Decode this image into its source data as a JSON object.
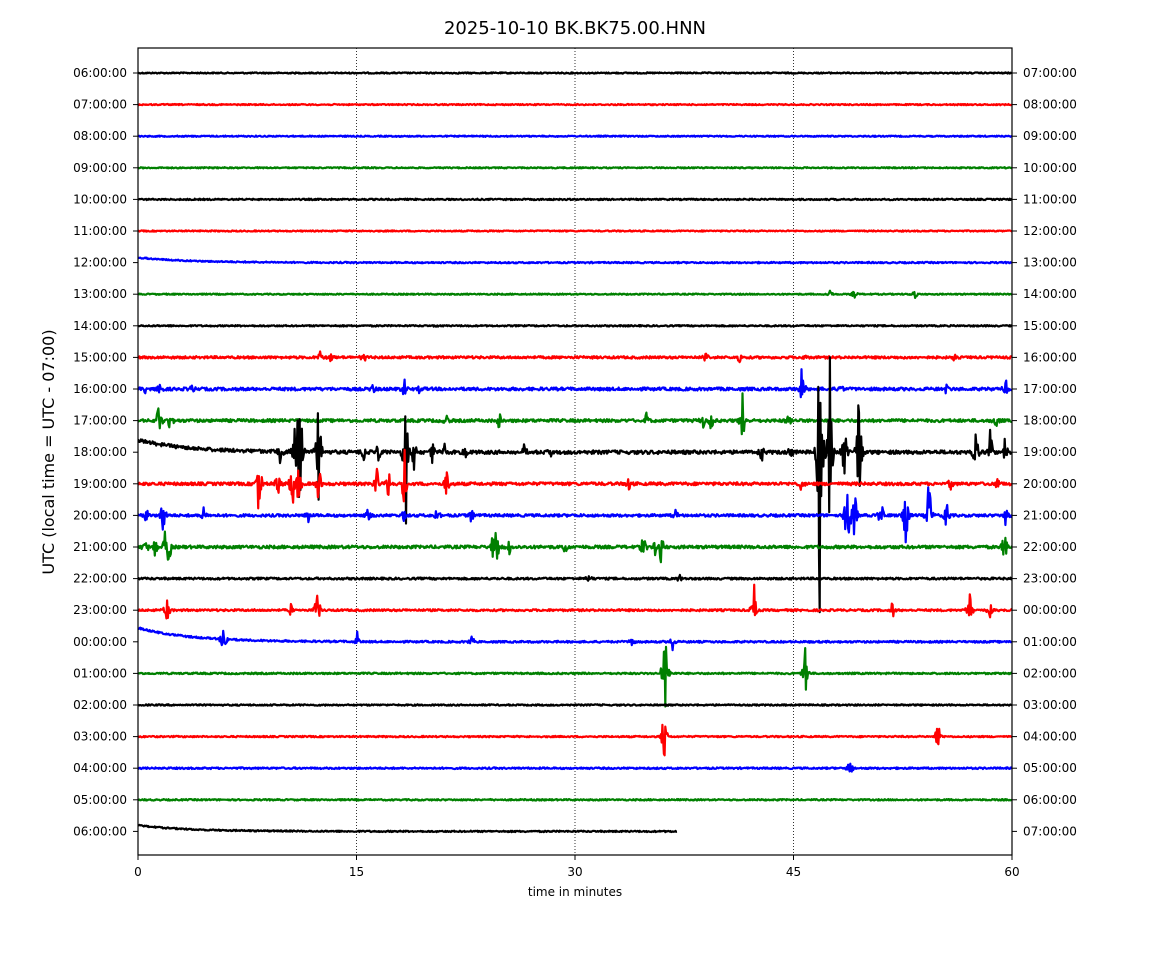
{
  "chart_data": {
    "type": "line",
    "title": "2025-10-10 BK.BK75.00.HNN",
    "xlabel": "time in minutes",
    "ylabel": "UTC (local time = UTC - 07:00)",
    "xlim": [
      0,
      60
    ],
    "x_ticks": [
      0,
      15,
      30,
      45,
      60
    ],
    "x_tick_labels": [
      "0",
      "15",
      "30",
      "45",
      "60"
    ],
    "grid": "vertical dotted lines at 15, 30, 45 minutes",
    "colors": [
      "#000000",
      "#ff0000",
      "#0000ff",
      "#008000"
    ],
    "left_tick_labels": [
      "06:00:00",
      "07:00:00",
      "08:00:00",
      "09:00:00",
      "10:00:00",
      "11:00:00",
      "12:00:00",
      "13:00:00",
      "14:00:00",
      "15:00:00",
      "16:00:00",
      "17:00:00",
      "18:00:00",
      "19:00:00",
      "20:00:00",
      "21:00:00",
      "22:00:00",
      "23:00:00",
      "00:00:00",
      "01:00:00",
      "02:00:00",
      "03:00:00",
      "04:00:00",
      "05:00:00",
      "06:00:00"
    ],
    "right_tick_labels": [
      "07:00:00",
      "08:00:00",
      "09:00:00",
      "10:00:00",
      "11:00:00",
      "12:00:00",
      "13:00:00",
      "14:00:00",
      "15:00:00",
      "16:00:00",
      "17:00:00",
      "18:00:00",
      "19:00:00",
      "20:00:00",
      "21:00:00",
      "22:00:00",
      "23:00:00",
      "00:00:00",
      "01:00:00",
      "02:00:00",
      "03:00:00",
      "04:00:00",
      "05:00:00",
      "06:00:00",
      "07:00:00"
    ],
    "traces": [
      {
        "noise": 0.6,
        "end_minute": 60,
        "offset_start": 0,
        "spikes": []
      },
      {
        "noise": 0.6,
        "end_minute": 60,
        "offset_start": 0,
        "spikes": []
      },
      {
        "noise": 0.6,
        "end_minute": 60,
        "offset_start": 0,
        "spikes": []
      },
      {
        "noise": 0.6,
        "end_minute": 60,
        "offset_start": 0,
        "spikes": []
      },
      {
        "noise": 0.7,
        "end_minute": 60,
        "offset_start": 0,
        "spikes": []
      },
      {
        "noise": 0.6,
        "end_minute": 60,
        "offset_start": 0,
        "spikes": []
      },
      {
        "noise": 0.7,
        "end_minute": 60,
        "offset_start": -5,
        "spikes": []
      },
      {
        "noise": 0.6,
        "end_minute": 60,
        "offset_start": 0,
        "spikes": [
          [
            47.5,
            6
          ],
          [
            49.2,
            5
          ],
          [
            53.3,
            6
          ]
        ]
      },
      {
        "noise": 0.7,
        "end_minute": 60,
        "offset_start": 0,
        "spikes": [
          [
            20.5,
            4
          ]
        ]
      },
      {
        "noise": 1.2,
        "end_minute": 60,
        "offset_start": 0,
        "spikes": [
          [
            12.5,
            6
          ],
          [
            13.2,
            6
          ],
          [
            15.5,
            6
          ],
          [
            39.0,
            6
          ],
          [
            41.3,
            6
          ],
          [
            45.7,
            7
          ],
          [
            56,
            5
          ]
        ]
      },
      {
        "noise": 1.5,
        "end_minute": 60,
        "offset_start": 0,
        "spikes": [
          [
            0.5,
            5
          ],
          [
            1.5,
            6
          ],
          [
            3.7,
            5
          ],
          [
            16.1,
            7
          ],
          [
            18.3,
            10
          ],
          [
            19.3,
            5
          ],
          [
            45.6,
            30
          ],
          [
            48.3,
            10
          ],
          [
            55.5,
            5
          ],
          [
            59.6,
            10
          ]
        ]
      },
      {
        "noise": 1.5,
        "end_minute": 60,
        "offset_start": 0,
        "spikes": [
          [
            1.4,
            25
          ],
          [
            2.2,
            18
          ],
          [
            21.2,
            9
          ],
          [
            24.8,
            12
          ],
          [
            34.9,
            9
          ],
          [
            38.8,
            10
          ],
          [
            39.3,
            15
          ],
          [
            41.5,
            30
          ],
          [
            44.7,
            9
          ],
          [
            58.9,
            10
          ]
        ]
      },
      {
        "noise": 1.8,
        "end_minute": 60,
        "offset_start": -12,
        "spikes": [
          [
            9.8,
            20
          ],
          [
            10.8,
            30
          ],
          [
            11.1,
            128
          ],
          [
            12.4,
            60
          ],
          [
            15.5,
            12
          ],
          [
            16.5,
            15
          ],
          [
            18.4,
            75
          ],
          [
            18.9,
            30
          ],
          [
            20.2,
            15
          ],
          [
            21.0,
            12
          ],
          [
            22.5,
            8
          ],
          [
            26.5,
            8
          ],
          [
            28.3,
            8
          ],
          [
            42.8,
            12
          ],
          [
            44.8,
            8
          ],
          [
            46.8,
            168
          ],
          [
            47.5,
            100
          ],
          [
            48.5,
            40
          ],
          [
            49.5,
            90
          ],
          [
            57.5,
            30
          ],
          [
            58.5,
            25
          ],
          [
            59.5,
            15
          ]
        ]
      },
      {
        "noise": 1.5,
        "end_minute": 60,
        "offset_start": 0,
        "spikes": [
          [
            8.3,
            40
          ],
          [
            9.6,
            18
          ],
          [
            10.6,
            35
          ],
          [
            11.0,
            25
          ],
          [
            12.4,
            25
          ],
          [
            16.4,
            20
          ],
          [
            17.2,
            20
          ],
          [
            18.3,
            35
          ],
          [
            21.2,
            20
          ],
          [
            33.7,
            8
          ],
          [
            45.5,
            8
          ],
          [
            55.8,
            8
          ],
          [
            59.0,
            8
          ]
        ]
      },
      {
        "noise": 1.3,
        "end_minute": 60,
        "offset_start": 0,
        "spikes": [
          [
            0.6,
            10
          ],
          [
            1.7,
            25
          ],
          [
            4.5,
            8
          ],
          [
            11.7,
            10
          ],
          [
            15.8,
            8
          ],
          [
            18.2,
            8
          ],
          [
            20.5,
            10
          ],
          [
            22.9,
            10
          ],
          [
            36.9,
            8
          ],
          [
            48.7,
            58
          ],
          [
            49.2,
            30
          ],
          [
            51.0,
            20
          ],
          [
            52.7,
            55
          ],
          [
            54.3,
            45
          ],
          [
            55.5,
            20
          ],
          [
            59.6,
            15
          ]
        ]
      },
      {
        "noise": 1.5,
        "end_minute": 60,
        "offset_start": 0,
        "spikes": [
          [
            0.5,
            20
          ],
          [
            1.2,
            15
          ],
          [
            2.0,
            66
          ],
          [
            24.5,
            55
          ],
          [
            25.5,
            12
          ],
          [
            29.3,
            12
          ],
          [
            34.7,
            15
          ],
          [
            35.5,
            10
          ],
          [
            35.9,
            20
          ],
          [
            59.5,
            25
          ]
        ]
      },
      {
        "noise": 1.0,
        "end_minute": 60,
        "offset_start": 0,
        "spikes": [
          [
            31.0,
            6
          ],
          [
            37.2,
            4
          ]
        ]
      },
      {
        "noise": 1.0,
        "end_minute": 60,
        "offset_start": 0,
        "spikes": [
          [
            2.0,
            15
          ],
          [
            10.5,
            8
          ],
          [
            12.3,
            25
          ],
          [
            42.3,
            25
          ],
          [
            51.8,
            12
          ],
          [
            57.1,
            25
          ],
          [
            58.5,
            8
          ]
        ]
      },
      {
        "noise": 0.9,
        "end_minute": 60,
        "offset_start": -14,
        "spikes": [
          [
            5.9,
            30
          ],
          [
            15.1,
            15
          ],
          [
            22.9,
            8
          ],
          [
            33.9,
            8
          ],
          [
            36.7,
            8
          ]
        ]
      },
      {
        "noise": 0.8,
        "end_minute": 60,
        "offset_start": 0,
        "spikes": [
          [
            36.2,
            80
          ],
          [
            45.8,
            28
          ]
        ]
      },
      {
        "noise": 0.7,
        "end_minute": 60,
        "offset_start": 0,
        "spikes": []
      },
      {
        "noise": 0.7,
        "end_minute": 60,
        "offset_start": 0,
        "spikes": [
          [
            36.1,
            35
          ],
          [
            54.9,
            20
          ]
        ]
      },
      {
        "noise": 0.8,
        "end_minute": 60,
        "offset_start": 0,
        "spikes": [
          [
            48.9,
            16
          ]
        ]
      },
      {
        "noise": 0.7,
        "end_minute": 60,
        "offset_start": 0,
        "spikes": []
      },
      {
        "noise": 0.7,
        "end_minute": 37,
        "offset_start": -6,
        "spikes": []
      }
    ]
  }
}
